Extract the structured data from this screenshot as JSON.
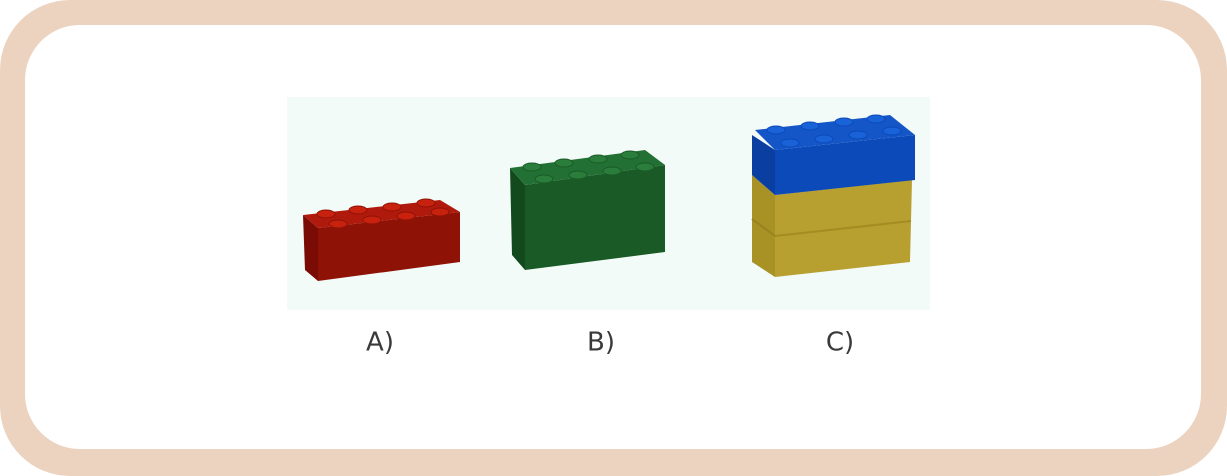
{
  "labels": [
    "A)",
    "B)",
    "C)"
  ]
}
